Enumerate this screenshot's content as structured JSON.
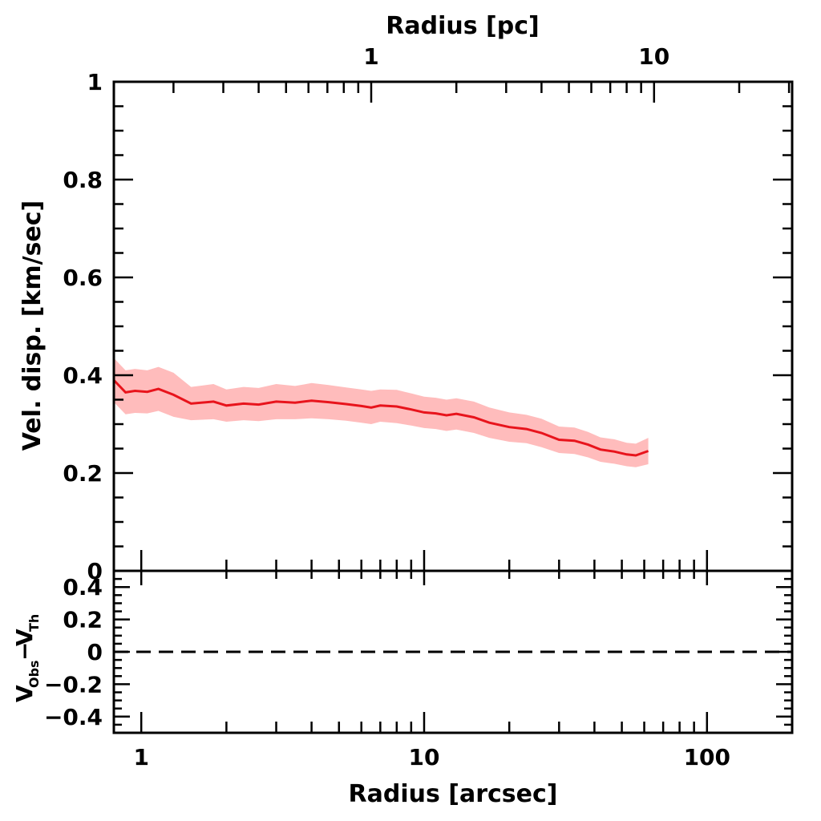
{
  "chart_data": [
    {
      "panel": "top",
      "type": "area",
      "xlabel": "Radius [arcsec]",
      "top_xlabel": "Radius [pc]",
      "ylabel": "Vel. disp. [km/sec]",
      "xscale": "log",
      "xlim": [
        0.8,
        200
      ],
      "ylim": [
        0,
        1
      ],
      "yticks": [
        0,
        0.2,
        0.4,
        0.6,
        0.8,
        1
      ],
      "ytick_labels": [
        "0",
        "0.2",
        "0.4",
        "0.6",
        "0.8",
        "1"
      ],
      "top_xticks_arcsec": [
        6.5,
        65
      ],
      "top_xtick_labels": [
        "1",
        "10"
      ],
      "line_color": "#e8141c",
      "band_color": "#ffbcbc",
      "series": [
        {
          "x": [
            0.8,
            0.88,
            0.95,
            1.05,
            1.15,
            1.3,
            1.5,
            1.8,
            2.0,
            2.3,
            2.6,
            3.0,
            3.5,
            4.0,
            4.6,
            5.3,
            6.0,
            6.5,
            7.0,
            8.0,
            9.0,
            10.0,
            11.0,
            12.0,
            13.0,
            15.0,
            17.0,
            20.0,
            23.0,
            26.0,
            30.0,
            34.0,
            38.0,
            42.0,
            47.0,
            52.0,
            56.0,
            62.0
          ],
          "y": [
            0.39,
            0.365,
            0.368,
            0.366,
            0.372,
            0.36,
            0.342,
            0.346,
            0.338,
            0.342,
            0.34,
            0.346,
            0.344,
            0.348,
            0.345,
            0.341,
            0.337,
            0.334,
            0.338,
            0.336,
            0.33,
            0.324,
            0.322,
            0.318,
            0.321,
            0.314,
            0.303,
            0.294,
            0.29,
            0.282,
            0.268,
            0.266,
            0.258,
            0.248,
            0.244,
            0.238,
            0.236,
            0.245
          ],
          "y_low": [
            0.345,
            0.32,
            0.323,
            0.322,
            0.327,
            0.315,
            0.308,
            0.31,
            0.305,
            0.308,
            0.306,
            0.31,
            0.31,
            0.312,
            0.31,
            0.307,
            0.303,
            0.3,
            0.305,
            0.302,
            0.297,
            0.292,
            0.29,
            0.286,
            0.289,
            0.282,
            0.272,
            0.264,
            0.261,
            0.253,
            0.241,
            0.239,
            0.232,
            0.223,
            0.219,
            0.214,
            0.212,
            0.218
          ],
          "y_high": [
            0.435,
            0.41,
            0.413,
            0.41,
            0.417,
            0.405,
            0.376,
            0.382,
            0.371,
            0.376,
            0.374,
            0.382,
            0.378,
            0.384,
            0.38,
            0.375,
            0.371,
            0.368,
            0.371,
            0.37,
            0.363,
            0.356,
            0.354,
            0.35,
            0.353,
            0.346,
            0.334,
            0.324,
            0.319,
            0.311,
            0.295,
            0.293,
            0.284,
            0.273,
            0.269,
            0.262,
            0.26,
            0.272
          ]
        }
      ]
    },
    {
      "panel": "bottom",
      "type": "line",
      "xlabel": "Radius [arcsec]",
      "ylabel": "V_Obs − V_Th",
      "xscale": "log",
      "xlim": [
        0.8,
        200
      ],
      "ylim": [
        -0.5,
        0.5
      ],
      "yticks": [
        -0.4,
        -0.2,
        0,
        0.2,
        0.4
      ],
      "ytick_labels": [
        "−0.4",
        "−0.2",
        "0",
        "0.2",
        "0.4"
      ],
      "xticks": [
        1,
        10,
        100
      ],
      "xtick_labels": [
        "1",
        "10",
        "100"
      ],
      "reference_line": {
        "y": 0,
        "style": "dashed"
      }
    }
  ],
  "labels": {
    "x_bottom": "Radius [arcsec]",
    "x_top": "Radius [pc]",
    "y_top": "Vel. disp. [km/sec]",
    "y_bottom_v": "V",
    "y_bottom_obs": "Obs",
    "y_bottom_minus": "−",
    "y_bottom_th": "Th"
  }
}
